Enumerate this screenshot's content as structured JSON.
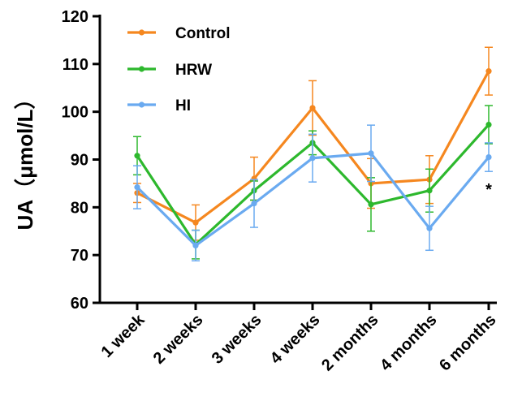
{
  "chart_data": {
    "type": "line",
    "title": "",
    "xlabel": "",
    "ylabel": "UA（μmol/L）",
    "ylim": [
      60,
      120
    ],
    "yticks": [
      60,
      70,
      80,
      90,
      100,
      110,
      120
    ],
    "categories": [
      "1 week",
      "2 weeks",
      "3 weeks",
      "4 weeks",
      "2 months",
      "4 months",
      "6 months"
    ],
    "grid": false,
    "legend": "top-left",
    "series": [
      {
        "name": "Control",
        "color": "#F5871F",
        "values": [
          83.0,
          76.8,
          86.0,
          100.8,
          85.0,
          85.8,
          108.5
        ],
        "errors": [
          2.0,
          3.7,
          4.5,
          5.7,
          5.2,
          5.0,
          5.0
        ]
      },
      {
        "name": "HRW",
        "color": "#2DB82D",
        "values": [
          90.8,
          72.2,
          83.5,
          93.5,
          80.6,
          83.5,
          97.3
        ],
        "errors": [
          4.0,
          3.0,
          2.0,
          2.5,
          5.6,
          4.5,
          4.0
        ]
      },
      {
        "name": "HI",
        "color": "#6AAAF0",
        "values": [
          84.2,
          72.0,
          80.8,
          90.3,
          91.3,
          75.6,
          90.5
        ],
        "errors": [
          4.5,
          3.2,
          5.0,
          5.0,
          5.9,
          4.6,
          3.0
        ]
      }
    ],
    "annotations": [
      {
        "category": "6 months",
        "text": "*"
      }
    ]
  }
}
